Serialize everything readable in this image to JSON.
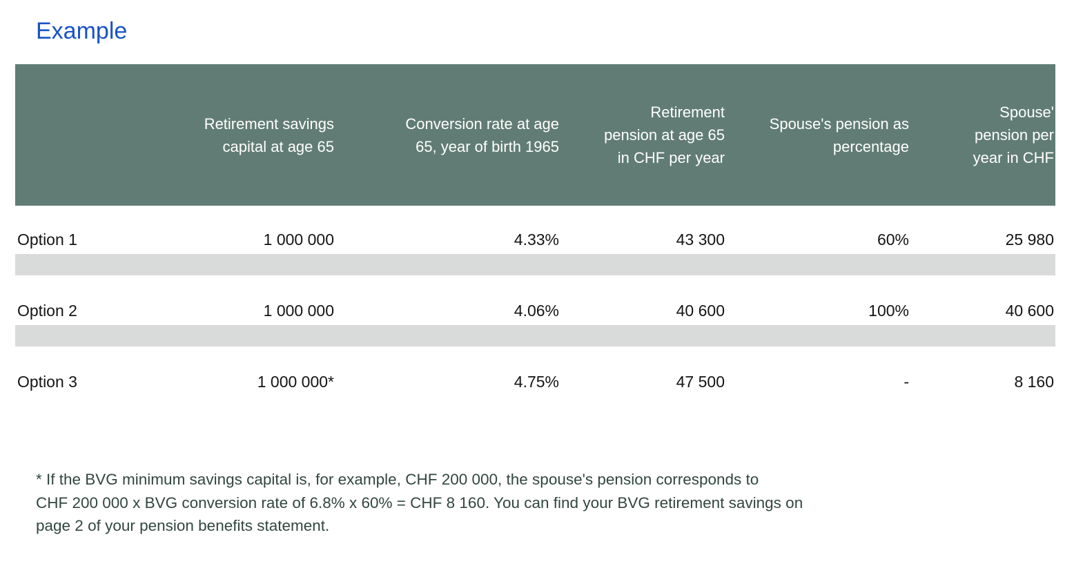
{
  "page": {
    "title": "Example"
  },
  "colors": {
    "header_bg": "#617C74",
    "band": "#D9DBDA",
    "title": "#1952C6",
    "footnote": "#31463E",
    "header_text": "#FFFFFF",
    "body_text": "#141414"
  },
  "table": {
    "columns": [
      {
        "label": ""
      },
      {
        "label": "Retirement savings\ncapital at age 65"
      },
      {
        "label": "Conversion rate at age\n65, year of birth 1965"
      },
      {
        "label": "Retirement\npension at age 65\nin CHF per year"
      },
      {
        "label": "Spouse's pension as\npercentage"
      },
      {
        "label": "Spouse'\npension per\nyear in CHF"
      }
    ],
    "rows": [
      {
        "option": "Option 1",
        "capital": "1 000 000",
        "rate": "4.33%",
        "pension": "43 300",
        "spouse_pct": "60%",
        "spouse_pension": "25 980"
      },
      {
        "option": "Option 2",
        "capital": "1 000 000",
        "rate": "4.06%",
        "pension": "40 600",
        "spouse_pct": "100%",
        "spouse_pension": "40 600"
      },
      {
        "option": "Option 3",
        "capital": "1 000 000*",
        "rate": "4.75%",
        "pension": "47 500",
        "spouse_pct": "-",
        "spouse_pension": "8 160"
      }
    ]
  },
  "footnote": "* If the BVG minimum savings capital is, for example, CHF 200 000, the spouse's pension corresponds to\nCHF 200 000 x BVG conversion rate of 6.8% x 60% = CHF 8 160. You can find your BVG retirement savings on\npage 2 of your pension benefits statement."
}
